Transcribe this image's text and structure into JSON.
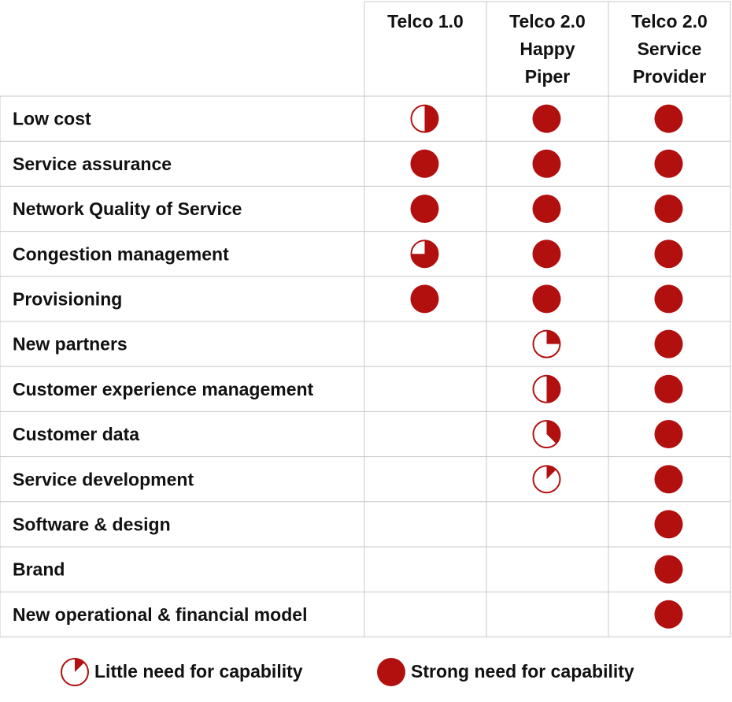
{
  "table": {
    "columns": [
      [
        "Telco 1.0"
      ],
      [
        "Telco 2.0",
        "Happy",
        "Piper"
      ],
      [
        "Telco 2.0",
        "Service",
        "Provider"
      ]
    ],
    "rows": [
      {
        "label": "Low cost",
        "values": [
          0.5,
          1,
          1
        ]
      },
      {
        "label": "Service assurance",
        "values": [
          1,
          1,
          1
        ]
      },
      {
        "label": "Network Quality of Service",
        "values": [
          1,
          1,
          1
        ]
      },
      {
        "label": "Congestion management",
        "values": [
          0.75,
          1,
          1
        ]
      },
      {
        "label": "Provisioning",
        "values": [
          1,
          1,
          1
        ]
      },
      {
        "label": "New partners",
        "values": [
          null,
          0.25,
          1
        ]
      },
      {
        "label": "Customer experience management",
        "values": [
          null,
          0.5,
          1
        ]
      },
      {
        "label": "Customer data",
        "values": [
          null,
          0.375,
          1
        ]
      },
      {
        "label": "Service development",
        "values": [
          null,
          0.125,
          1
        ]
      },
      {
        "label": "Software & design",
        "values": [
          null,
          null,
          1
        ]
      },
      {
        "label": "Brand",
        "values": [
          null,
          null,
          1
        ]
      },
      {
        "label": "New operational & financial model",
        "values": [
          null,
          null,
          1
        ]
      }
    ]
  },
  "legend": [
    {
      "label": "Little need for capability",
      "value": 0.125
    },
    {
      "label": "Strong need for capability",
      "value": 1
    }
  ],
  "color": "#b20f0f"
}
